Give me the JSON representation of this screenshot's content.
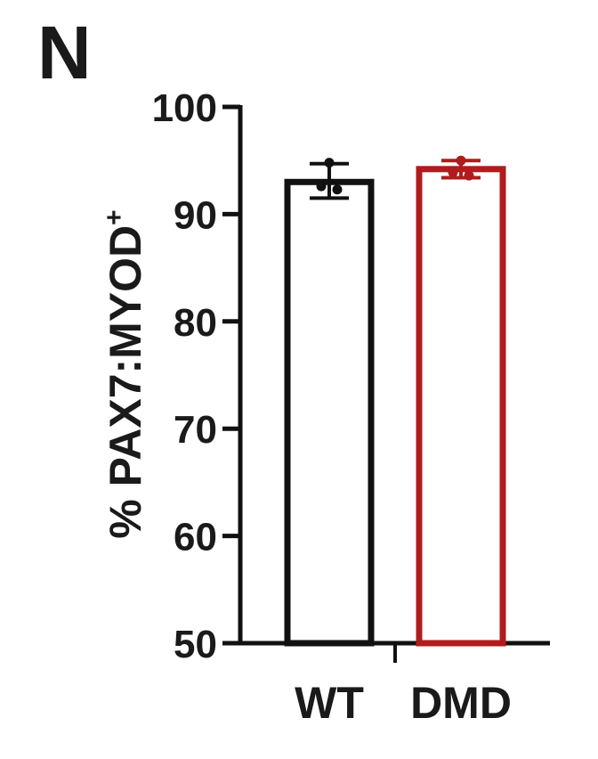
{
  "panel_label": "N",
  "chart_data": {
    "type": "bar",
    "categories": [
      "WT",
      "DMD"
    ],
    "ylabel": "% PAX7:MYOD",
    "ylabel_superscript": "+",
    "ylim": [
      50,
      100
    ],
    "yticks": [
      50,
      60,
      70,
      80,
      90,
      100
    ],
    "grid": false,
    "bars": [
      {
        "category": "WT",
        "value": 93.0,
        "error": [
          91.5,
          94.7
        ],
        "points": [
          94.8,
          92.6,
          92.3
        ],
        "color": "#111111"
      },
      {
        "category": "DMD",
        "value": 94.2,
        "error": [
          93.4,
          95.0
        ],
        "points": [
          95.0,
          93.9,
          93.6
        ],
        "color": "#b01c1c"
      }
    ]
  }
}
